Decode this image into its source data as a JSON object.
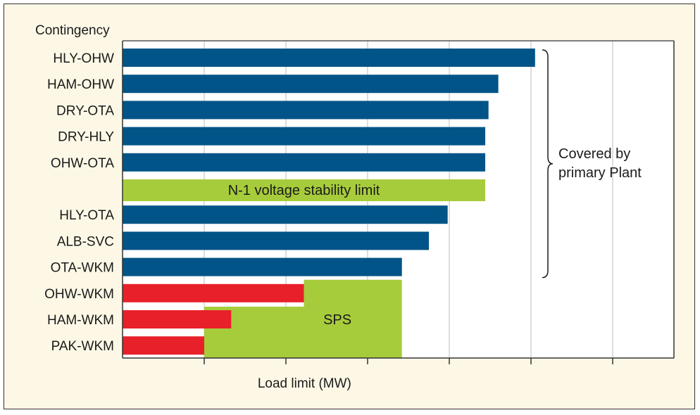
{
  "chart_data": {
    "type": "bar",
    "orientation": "horizontal",
    "title": "",
    "ylabel": "Contingency",
    "xlabel": "Load limit (MW)",
    "xlim": [
      0,
      675
    ],
    "gridlines": [
      100,
      200,
      300,
      400,
      500,
      600
    ],
    "xtick_labels_shown": false,
    "categories": [
      "HLY-OHW",
      "HAM-OHW",
      "DRY-OTA",
      "DRY-HLY",
      "OHW-OTA",
      "HLY-OTA",
      "ALB-SVC",
      "OTA-WKM",
      "OHW-WKM",
      "HAM-WKM",
      "PAK-WKM"
    ],
    "values": [
      505,
      460,
      448,
      444,
      444,
      398,
      375,
      342,
      222,
      133,
      100
    ],
    "bar_groups": [
      "primary",
      "primary",
      "primary",
      "primary",
      "primary",
      "primary",
      "primary",
      "primary",
      "sps",
      "sps",
      "sps"
    ],
    "colors": {
      "primary": "#005487",
      "sps": "#e8202a",
      "limit": "#a7cc3b",
      "grid": "#c8c8c8",
      "axis": "#333333",
      "background": "#fdf8e6",
      "plot": "#ffffff"
    },
    "stability_limit": {
      "label": "N-1 voltage stability limit",
      "value": 444,
      "after_category": "OHW-OTA"
    },
    "sps_region": {
      "label": "SPS",
      "x_start": 100,
      "x_end": 342,
      "step_x": 222,
      "step_after_category": "OHW-WKM"
    },
    "annotation": {
      "lines": [
        "Covered by",
        "primary Plant"
      ],
      "from_category": "HLY-OHW",
      "to_category": "OTA-WKM"
    }
  }
}
